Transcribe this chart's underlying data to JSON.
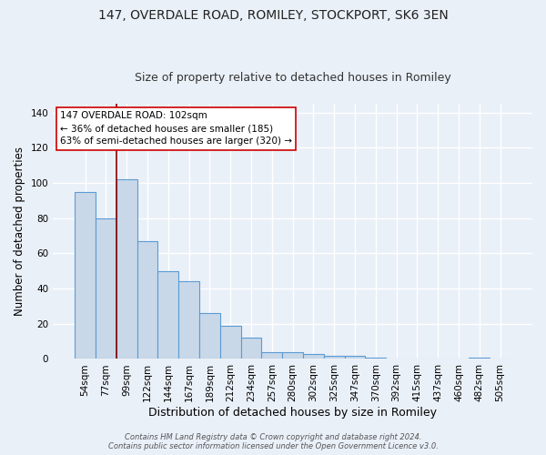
{
  "title1": "147, OVERDALE ROAD, ROMILEY, STOCKPORT, SK6 3EN",
  "title2": "Size of property relative to detached houses in Romiley",
  "xlabel": "Distribution of detached houses by size in Romiley",
  "ylabel": "Number of detached properties",
  "categories": [
    "54sqm",
    "77sqm",
    "99sqm",
    "122sqm",
    "144sqm",
    "167sqm",
    "189sqm",
    "212sqm",
    "234sqm",
    "257sqm",
    "280sqm",
    "302sqm",
    "325sqm",
    "347sqm",
    "370sqm",
    "392sqm",
    "415sqm",
    "437sqm",
    "460sqm",
    "482sqm",
    "505sqm"
  ],
  "values": [
    95,
    80,
    102,
    67,
    50,
    44,
    26,
    19,
    12,
    4,
    4,
    3,
    2,
    2,
    1,
    0,
    0,
    0,
    0,
    1,
    0
  ],
  "bar_color": "#c8d8e8",
  "bar_edge_color": "#5b9bd5",
  "vline_index": 2,
  "vline_color": "#880000",
  "annotation_text": "147 OVERDALE ROAD: 102sqm\n← 36% of detached houses are smaller (185)\n63% of semi-detached houses are larger (320) →",
  "annotation_box_color": "#ffffff",
  "annotation_box_edge": "#cc0000",
  "ylim": [
    0,
    145
  ],
  "yticks": [
    0,
    20,
    40,
    60,
    80,
    100,
    120,
    140
  ],
  "footer": "Contains HM Land Registry data © Crown copyright and database right 2024.\nContains public sector information licensed under the Open Government Licence v3.0.",
  "bg_color": "#eaf0f8",
  "plot_bg_color": "#eaf0f8",
  "grid_color": "#ffffff",
  "title_fontsize": 10,
  "subtitle_fontsize": 9,
  "tick_fontsize": 7.5,
  "ylabel_fontsize": 8.5,
  "xlabel_fontsize": 9
}
